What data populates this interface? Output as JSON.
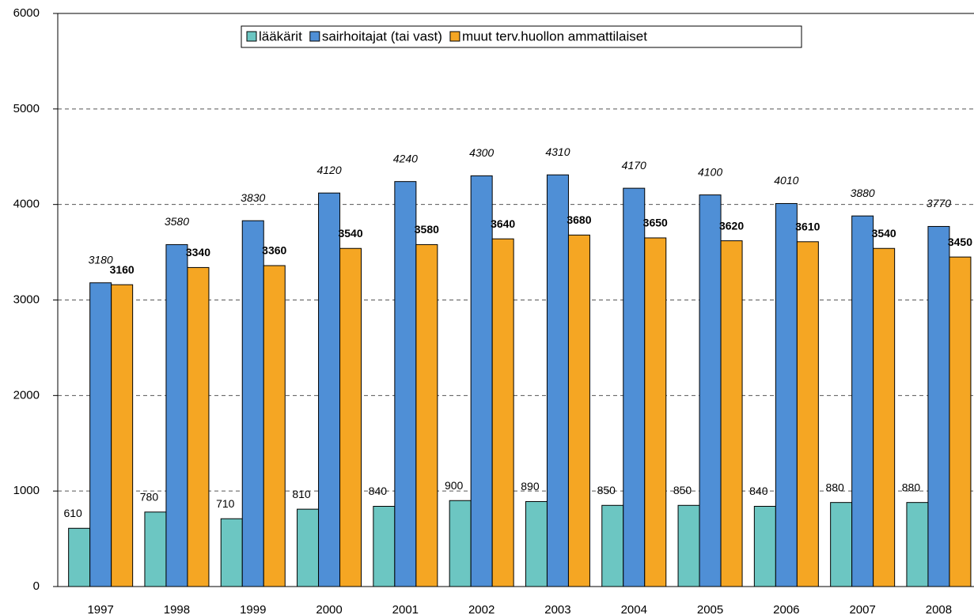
{
  "chart_data": {
    "type": "bar",
    "categories": [
      "1997",
      "1998",
      "1999",
      "2000",
      "2001",
      "2002",
      "2003",
      "2004",
      "2005",
      "2006",
      "2007",
      "2008"
    ],
    "series": [
      {
        "name": "lääkärit",
        "color": "#6cc6c2",
        "values": [
          610,
          780,
          710,
          810,
          840,
          900,
          890,
          850,
          850,
          840,
          880,
          880
        ]
      },
      {
        "name": "sairhoitajat (tai vast)",
        "color": "#4f8fd6",
        "values": [
          3180,
          3580,
          3830,
          4120,
          4240,
          4300,
          4310,
          4170,
          4100,
          4010,
          3880,
          3770
        ]
      },
      {
        "name": "muut terv.huollon ammattilaiset",
        "color": "#f5a623",
        "values": [
          3160,
          3340,
          3360,
          3540,
          3580,
          3640,
          3680,
          3650,
          3620,
          3610,
          3540,
          3450
        ]
      }
    ],
    "ylim": [
      0,
      6000
    ],
    "yticks": [
      0,
      1000,
      2000,
      3000,
      4000,
      5000,
      6000
    ],
    "grid": true,
    "legend": "top"
  }
}
